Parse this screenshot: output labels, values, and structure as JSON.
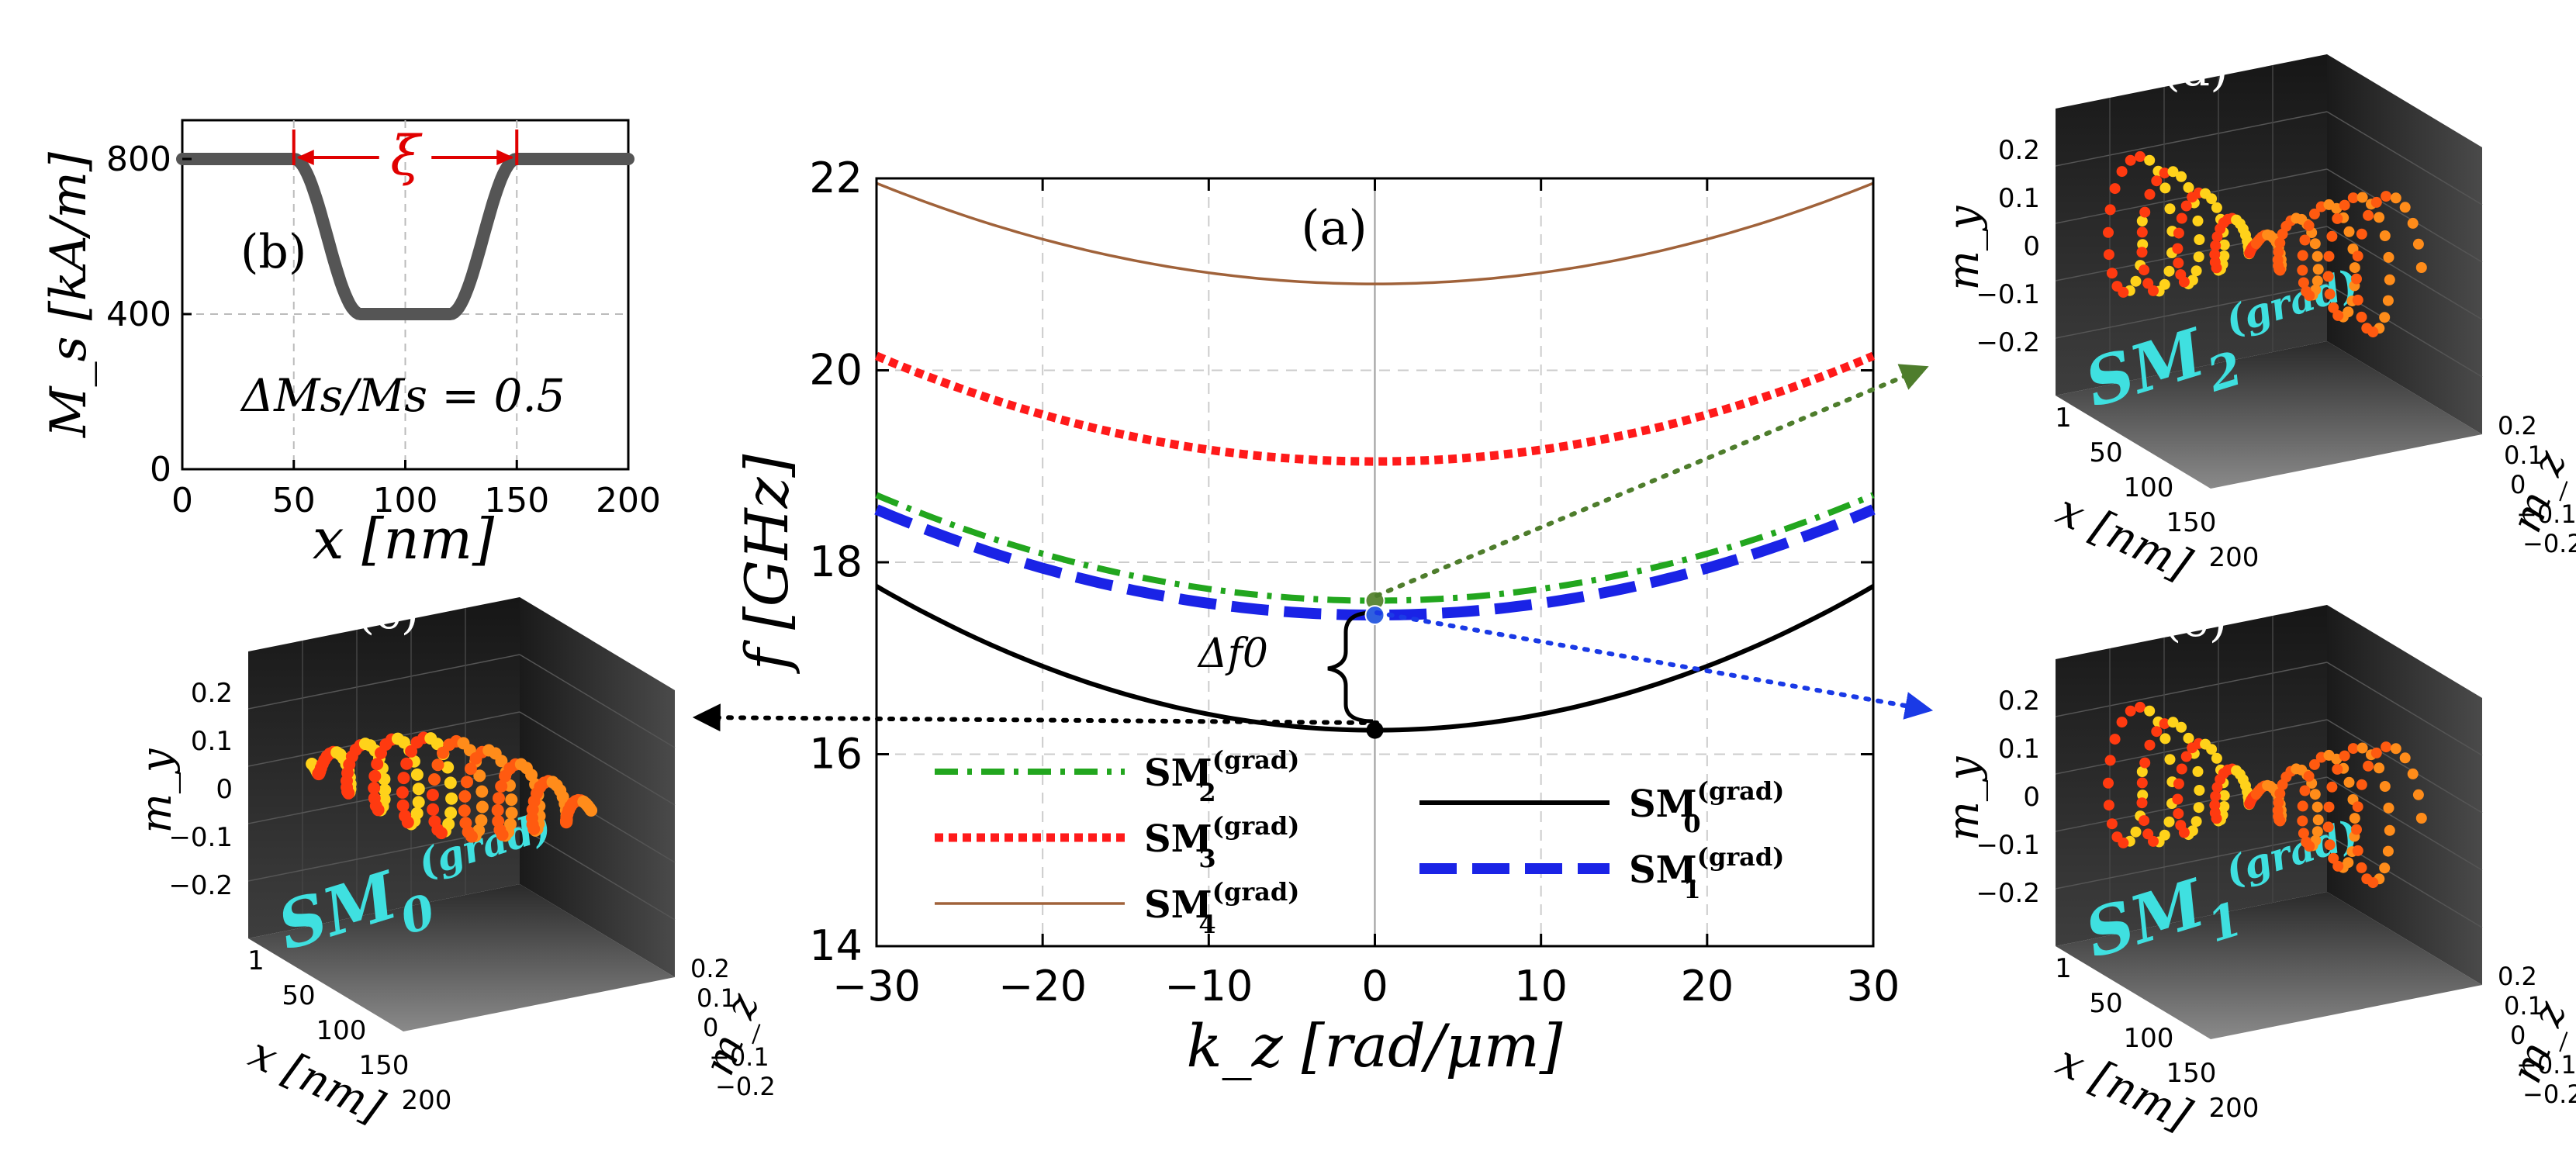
{
  "colors": {
    "sm0": "#000000",
    "sm1": "#1a23e6",
    "sm2": "#22a61e",
    "sm3": "#ff1a1a",
    "sm4": "#a0623a",
    "arrow_d": "#4e7d2c",
    "arrow_e": "#1a3ae6",
    "cyan": "#3fe0e0",
    "red": "#e00000"
  },
  "chart_data": [
    {
      "panel": "(a)",
      "type": "line",
      "title": "",
      "panel_label": "(a)",
      "xlabel": "k_z [rad/μm]",
      "ylabel": "f [GHz]",
      "xlim": [
        -30,
        30
      ],
      "ylim": [
        14,
        22
      ],
      "xticks": [
        "−30",
        "−20",
        "−10",
        "0",
        "10",
        "20",
        "30"
      ],
      "yticks": [
        "14",
        "16",
        "18",
        "20",
        "22"
      ],
      "series": [
        {
          "name": "SM0(grad)",
          "f0": 16.25,
          "f_edge": 17.75,
          "style": "solid",
          "color_key": "sm0"
        },
        {
          "name": "SM1(grad)",
          "f0": 17.45,
          "f_edge": 18.55,
          "style": "long-dash",
          "color_key": "sm1"
        },
        {
          "name": "SM2(grad)",
          "f0": 17.6,
          "f_edge": 18.7,
          "style": "dash-dot",
          "color_key": "sm2"
        },
        {
          "name": "SM3(grad)",
          "f0": 19.05,
          "f_edge": 20.15,
          "style": "dotted",
          "color_key": "sm3"
        },
        {
          "name": "SM4(grad)",
          "f0": 20.9,
          "f_edge": 21.95,
          "style": "thin",
          "color_key": "sm4"
        }
      ],
      "annotation": "Δf0",
      "legend": {
        "left": [
          {
            "base": "SM",
            "sub": "2",
            "sup": "(grad)",
            "color_key": "sm2"
          },
          {
            "base": "SM",
            "sub": "3",
            "sup": "(grad)",
            "color_key": "sm3"
          },
          {
            "base": "SM",
            "sub": "4",
            "sup": "(grad)",
            "color_key": "sm4"
          }
        ],
        "right": [
          {
            "base": "SM",
            "sub": "0",
            "sup": "(grad)",
            "color_key": "sm0"
          },
          {
            "base": "SM",
            "sub": "1",
            "sup": "(grad)",
            "color_key": "sm1"
          }
        ]
      }
    },
    {
      "panel": "(b)",
      "type": "line",
      "panel_label": "(b)",
      "xlabel": "x [nm]",
      "ylabel": "M_s [kA/m]",
      "xlim": [
        0,
        200
      ],
      "ylim": [
        0,
        900
      ],
      "xticks": [
        "0",
        "50",
        "100",
        "150",
        "200"
      ],
      "yticks": [
        "0",
        "400",
        "800"
      ],
      "profile": {
        "outer": 800,
        "inner": 400,
        "dip_start": 50,
        "flat_start": 80,
        "flat_end": 120,
        "dip_end": 150
      },
      "xi_label": "ξ",
      "xi_range": [
        50,
        150
      ],
      "ratio_text": "ΔMs/Ms = 0.5"
    }
  ],
  "insets": {
    "c": {
      "label": "(c)",
      "mode": "SM0(grad)",
      "mode_base": "SM",
      "mode_sub": "0",
      "mode_sup": "(grad)"
    },
    "d": {
      "label": "(d)",
      "mode": "SM2(grad)",
      "mode_base": "SM",
      "mode_sub": "2",
      "mode_sup": "(grad)"
    },
    "e": {
      "label": "(e)",
      "mode": "SM1(grad)",
      "mode_base": "SM",
      "mode_sub": "1",
      "mode_sup": "(grad)"
    },
    "axes": {
      "my_label": "m_y",
      "mz_label": "m_z",
      "x_label": "x [nm]",
      "my_ticks": [
        "0.2",
        "0.1",
        "0",
        "−0.1",
        "−0.2"
      ],
      "mz_ticks": [
        "0.2",
        "0.1",
        "0",
        "−0.1",
        "−0.2"
      ],
      "x_ticks": [
        "1",
        "50",
        "100",
        "150",
        "200"
      ]
    }
  }
}
